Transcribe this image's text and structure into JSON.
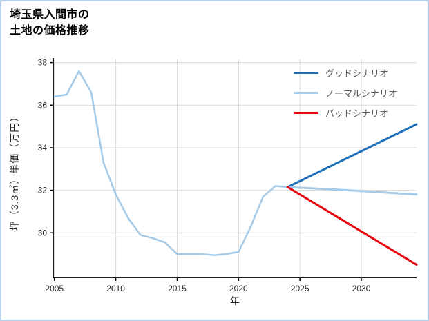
{
  "title": {
    "line1": "埼玉県入間市の",
    "line2": "土地の価格推移"
  },
  "chart_data": {
    "type": "line",
    "title": "埼玉県入間市の土地の価格推移",
    "xlabel": "年",
    "ylabel": "坪（3.3㎡）単価（万円）",
    "xlim": [
      2004.9,
      2034.5
    ],
    "ylim": [
      27.9,
      38.15
    ],
    "x_ticks": [
      2005,
      2010,
      2015,
      2020,
      2025,
      2030
    ],
    "y_ticks": [
      30,
      32,
      34,
      36,
      38
    ],
    "grid": true,
    "legend_position": "top-right",
    "style": {
      "grid_color": "#d9d9d9",
      "axis_color": "#000000",
      "tick_label_color": "#262626",
      "border_color": "#b9d2ea"
    },
    "series": [
      {
        "id": "historical",
        "color": "#a6cbe8",
        "width": 2.6,
        "x": [
          2005,
          2006,
          2007,
          2008,
          2009,
          2010,
          2011,
          2012,
          2013,
          2014,
          2015,
          2016,
          2017,
          2018,
          2019,
          2020,
          2021,
          2022,
          2023,
          2024
        ],
        "values": [
          36.4,
          36.5,
          37.6,
          36.6,
          33.3,
          31.8,
          30.7,
          29.9,
          29.75,
          29.55,
          29.0,
          29.0,
          29.0,
          28.95,
          29.0,
          29.1,
          30.3,
          31.7,
          32.2,
          32.15
        ]
      },
      {
        "id": "good-scenario",
        "name": "グッドシナリオ",
        "color": "#1c6fb8",
        "width": 3,
        "x": [
          2024,
          2034.5
        ],
        "values": [
          32.15,
          35.1
        ]
      },
      {
        "id": "normal-scenario",
        "name": "ノーマルシナリオ",
        "color": "#a6cbe8",
        "width": 3,
        "x": [
          2024,
          2029,
          2034.5
        ],
        "values": [
          32.15,
          32.0,
          31.8
        ]
      },
      {
        "id": "bad-scenario",
        "name": "バッドシナリオ",
        "color": "#e8000b",
        "width": 3,
        "x": [
          2024,
          2034.5
        ],
        "values": [
          32.15,
          28.5
        ]
      }
    ],
    "legend": [
      {
        "label": "グッドシナリオ",
        "color": "#1c6fb8"
      },
      {
        "label": "ノーマルシナリオ",
        "color": "#a6cbe8"
      },
      {
        "label": "バッドシナリオ",
        "color": "#e8000b"
      }
    ]
  }
}
